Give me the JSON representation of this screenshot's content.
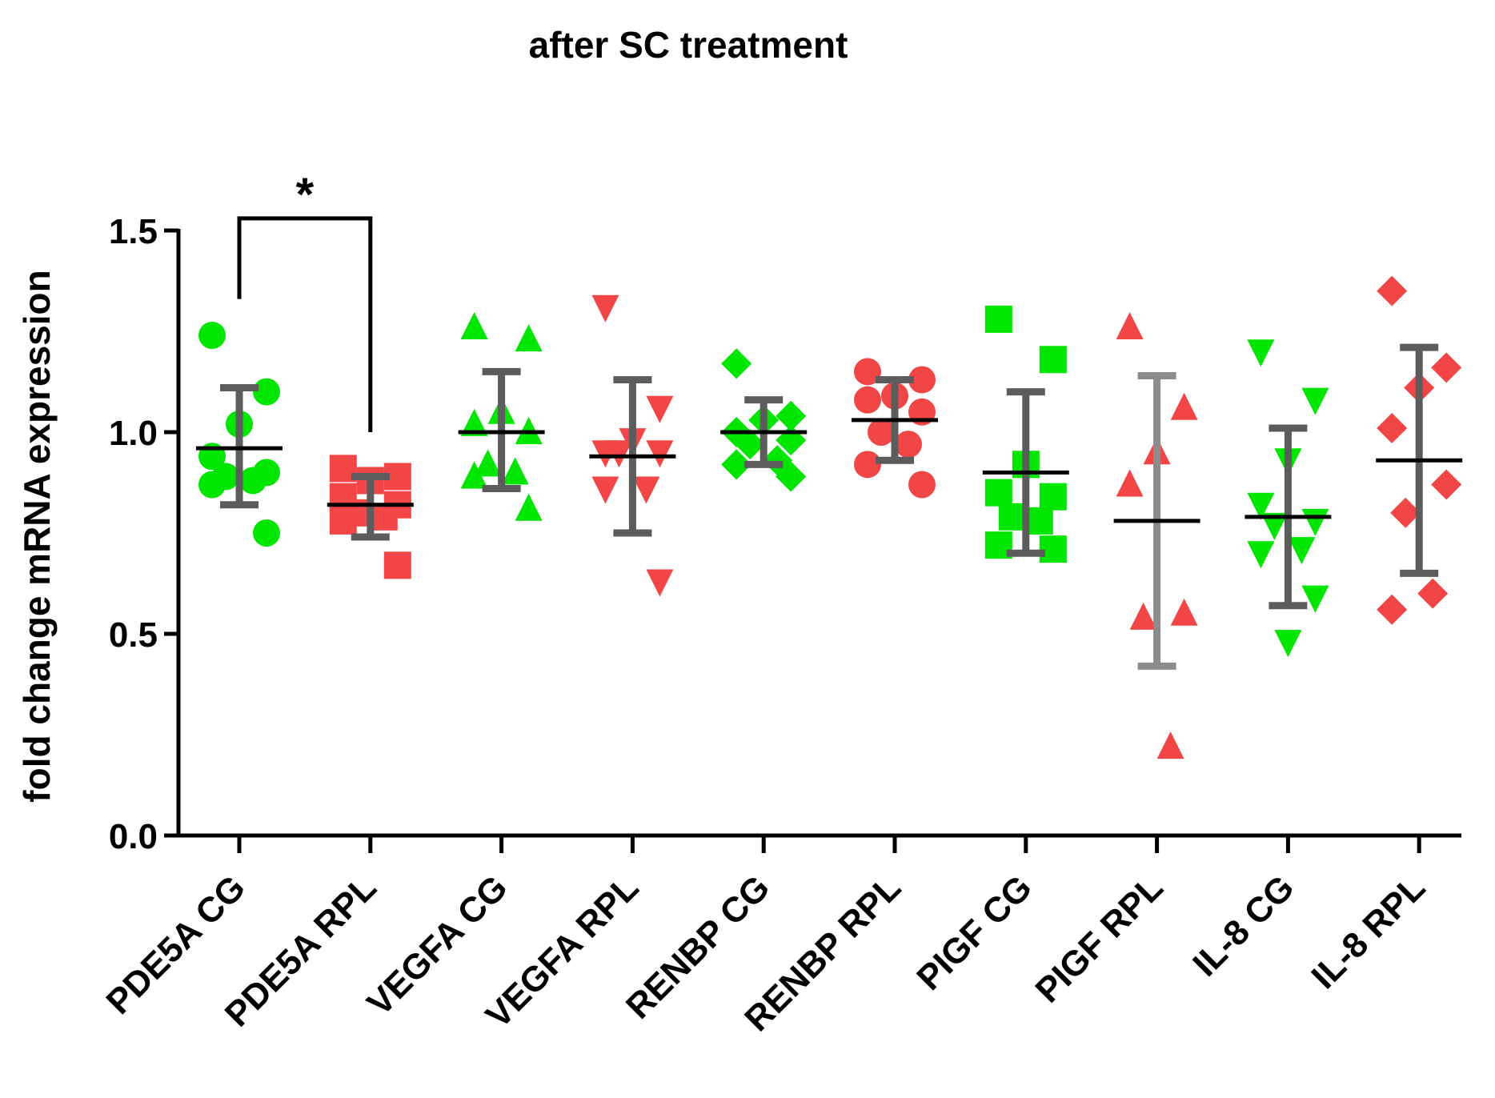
{
  "colors": {
    "cg": "#00e600",
    "rpl": "#f24646",
    "mean_line": "#000000",
    "error_dark": "#5c5c5c",
    "error_light": "#8c8c8c",
    "axis": "#000000"
  },
  "chart_data": {
    "type": "scatter",
    "title": "after SC treatment",
    "xlabel": "",
    "ylabel": "fold change mRNA expression",
    "ylim": [
      0,
      1.5
    ],
    "yticks": [
      "0.0",
      "0.5",
      "1.0",
      "1.5"
    ],
    "ytick_values": [
      0,
      0.5,
      1.0,
      1.5
    ],
    "categories": [
      "PDE5A CG",
      "PDE5A RPL",
      "VEGFA CG",
      "VEGFA RPL",
      "RENBP CG",
      "RENBP RPL",
      "PIGF CG",
      "PIGF RPL",
      "IL-8 CG",
      "IL-8 RPL"
    ],
    "series": [
      {
        "name": "PDE5A CG",
        "group": "CG",
        "marker": "circle",
        "mean": 0.96,
        "error": [
          0.82,
          1.11
        ],
        "values": [
          1.24,
          1.1,
          1.02,
          0.94,
          0.9,
          0.89,
          0.88,
          0.87,
          0.75
        ]
      },
      {
        "name": "PDE5A RPL",
        "group": "RPL",
        "marker": "square",
        "mean": 0.82,
        "error": [
          0.74,
          0.89
        ],
        "values": [
          0.91,
          0.89,
          0.88,
          0.84,
          0.82,
          0.8,
          0.79,
          0.78,
          0.67
        ]
      },
      {
        "name": "VEGFA CG",
        "group": "CG",
        "marker": "triangle-up",
        "mean": 1.0,
        "error": [
          0.86,
          1.15
        ],
        "values": [
          1.26,
          1.23,
          1.05,
          1.02,
          1.0,
          0.92,
          0.9,
          0.89,
          0.81
        ]
      },
      {
        "name": "VEGFA RPL",
        "group": "RPL",
        "marker": "triangle-down",
        "mean": 0.94,
        "error": [
          0.75,
          1.13
        ],
        "values": [
          1.31,
          1.06,
          0.98,
          0.95,
          0.95,
          0.95,
          0.86,
          0.86,
          0.63
        ]
      },
      {
        "name": "RENBP CG",
        "group": "CG",
        "marker": "diamond",
        "mean": 1.0,
        "error": [
          0.92,
          1.08
        ],
        "values": [
          1.17,
          1.04,
          1.03,
          1.0,
          0.98,
          0.97,
          0.93,
          0.92,
          0.89
        ]
      },
      {
        "name": "RENBP RPL",
        "group": "RPL",
        "marker": "circle",
        "mean": 1.03,
        "error": [
          0.93,
          1.13
        ],
        "values": [
          1.15,
          1.13,
          1.09,
          1.08,
          1.05,
          1.0,
          0.97,
          0.92,
          0.87
        ]
      },
      {
        "name": "PIGF CG",
        "group": "CG",
        "marker": "square",
        "mean": 0.9,
        "error": [
          0.7,
          1.1
        ],
        "values": [
          1.28,
          1.18,
          0.92,
          0.85,
          0.84,
          0.79,
          0.78,
          0.72,
          0.71
        ]
      },
      {
        "name": "PIGF RPL",
        "group": "RPL",
        "marker": "triangle-up",
        "mean": 0.78,
        "error": [
          0.42,
          1.14
        ],
        "values": [
          1.26,
          1.06,
          0.95,
          0.87,
          0.55,
          0.54,
          0.22
        ]
      },
      {
        "name": "IL-8 CG",
        "group": "CG",
        "marker": "triangle-down",
        "mean": 0.79,
        "error": [
          0.57,
          1.01
        ],
        "values": [
          1.2,
          1.08,
          0.93,
          0.82,
          0.78,
          0.77,
          0.71,
          0.7,
          0.59,
          0.48
        ]
      },
      {
        "name": "IL-8 RPL",
        "group": "RPL",
        "marker": "diamond",
        "mean": 0.93,
        "error": [
          0.65,
          1.21
        ],
        "values": [
          1.35,
          1.16,
          1.11,
          1.01,
          0.87,
          0.8,
          0.6,
          0.56
        ]
      }
    ],
    "annotations": [
      {
        "text": "*",
        "between": [
          "PDE5A CG",
          "PDE5A RPL"
        ],
        "bracket_y": 1.53,
        "left_end": 1.33,
        "right_end": 1.0
      }
    ]
  }
}
